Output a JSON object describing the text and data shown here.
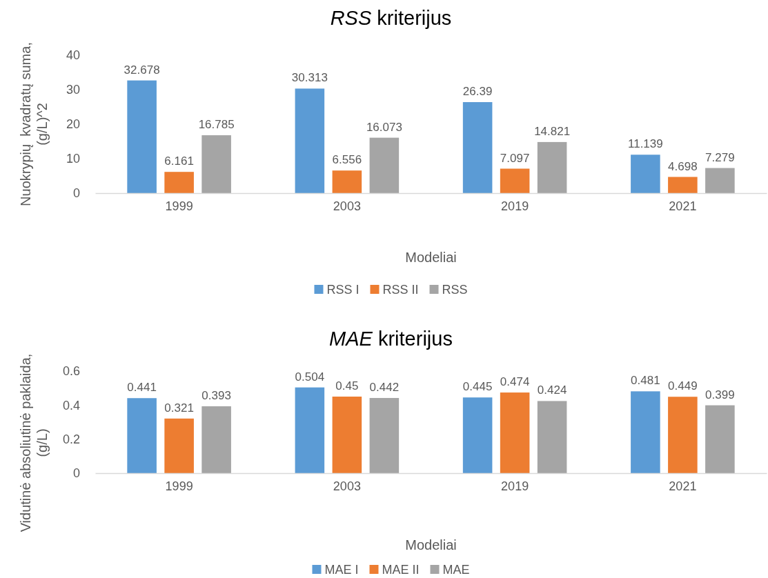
{
  "chart_data": [
    {
      "type": "bar",
      "title": "RSS kriterijus",
      "xlabel": "Modeliai",
      "ylabel": "Nuokrypių  kvadratų suma,\n(g/L)^2",
      "categories": [
        "1999",
        "2003",
        "2019",
        "2021"
      ],
      "series": [
        {
          "name": "RSS I",
          "color": "#5b9bd5",
          "values": [
            32.678,
            30.313,
            26.39,
            11.139
          ]
        },
        {
          "name": "RSS II",
          "color": "#ed7d31",
          "values": [
            6.161,
            6.556,
            7.097,
            4.698
          ]
        },
        {
          "name": "RSS",
          "color": "#a5a5a5",
          "values": [
            16.785,
            16.073,
            14.821,
            7.279
          ]
        }
      ],
      "ylim": [
        0,
        40
      ],
      "yticks": [
        0,
        10,
        20,
        30,
        40
      ],
      "data_labels": true,
      "legend": "bottom"
    },
    {
      "type": "bar",
      "title": "MAE kriterijus",
      "xlabel": "Modeliai",
      "ylabel": "Vidutinė absoliutinė paklaida,\n(g/L)",
      "categories": [
        "1999",
        "2003",
        "2019",
        "2021"
      ],
      "series": [
        {
          "name": "MAE I",
          "color": "#5b9bd5",
          "values": [
            0.441,
            0.504,
            0.445,
            0.481
          ]
        },
        {
          "name": "MAE II",
          "color": "#ed7d31",
          "values": [
            0.321,
            0.45,
            0.474,
            0.449
          ]
        },
        {
          "name": "MAE",
          "color": "#a5a5a5",
          "values": [
            0.393,
            0.442,
            0.424,
            0.399
          ]
        }
      ],
      "ylim": [
        0,
        0.6
      ],
      "yticks": [
        0,
        0.2,
        0.4,
        0.6
      ],
      "data_labels": true,
      "legend": "bottom"
    }
  ]
}
